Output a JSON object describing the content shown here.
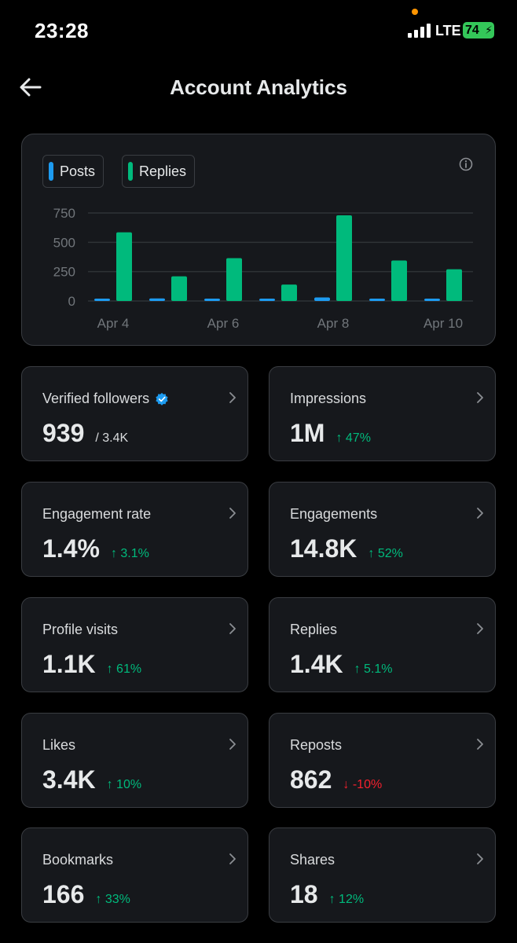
{
  "status_bar": {
    "time": "23:28",
    "network": "LTE",
    "battery": "74"
  },
  "header": {
    "title": "Account Analytics",
    "back_icon": "arrow-left-icon"
  },
  "chart": {
    "legend": [
      {
        "label": "Posts",
        "color": "#1d9bf0"
      },
      {
        "label": "Replies",
        "color": "#00ba7c"
      }
    ],
    "info_icon": "info-icon"
  },
  "chart_data": {
    "type": "bar",
    "categories": [
      "Apr 4",
      "Apr 5",
      "Apr 6",
      "Apr 7",
      "Apr 8",
      "Apr 9",
      "Apr 10"
    ],
    "x_tick_labels": [
      "Apr 4",
      "Apr 6",
      "Apr 8",
      "Apr 10"
    ],
    "y_ticks": [
      0,
      250,
      500,
      750
    ],
    "ylim": [
      0,
      750
    ],
    "grid": true,
    "legend_position": "top-left",
    "series": [
      {
        "name": "Posts",
        "color": "#1d9bf0",
        "values": [
          20,
          22,
          18,
          10,
          30,
          8,
          15
        ]
      },
      {
        "name": "Replies",
        "color": "#00ba7c",
        "values": [
          585,
          210,
          365,
          140,
          730,
          345,
          270
        ]
      }
    ]
  },
  "metrics": [
    {
      "label": "Verified followers",
      "value": "939",
      "secondary": "/ 3.4K",
      "verified": true
    },
    {
      "label": "Impressions",
      "value": "1M",
      "change": "↑ 47%",
      "direction": "up"
    },
    {
      "label": "Engagement rate",
      "value": "1.4%",
      "change": "↑ 3.1%",
      "direction": "up"
    },
    {
      "label": "Engagements",
      "value": "14.8K",
      "change": "↑ 52%",
      "direction": "up"
    },
    {
      "label": "Profile visits",
      "value": "1.1K",
      "change": "↑ 61%",
      "direction": "up"
    },
    {
      "label": "Replies",
      "value": "1.4K",
      "change": "↑ 5.1%",
      "direction": "up"
    },
    {
      "label": "Likes",
      "value": "3.4K",
      "change": "↑ 10%",
      "direction": "up"
    },
    {
      "label": "Reposts",
      "value": "862",
      "change": "↓ -10%",
      "direction": "down"
    },
    {
      "label": "Bookmarks",
      "value": "166",
      "change": "↑ 33%",
      "direction": "up"
    },
    {
      "label": "Shares",
      "value": "18",
      "change": "↑ 12%",
      "direction": "up"
    }
  ]
}
